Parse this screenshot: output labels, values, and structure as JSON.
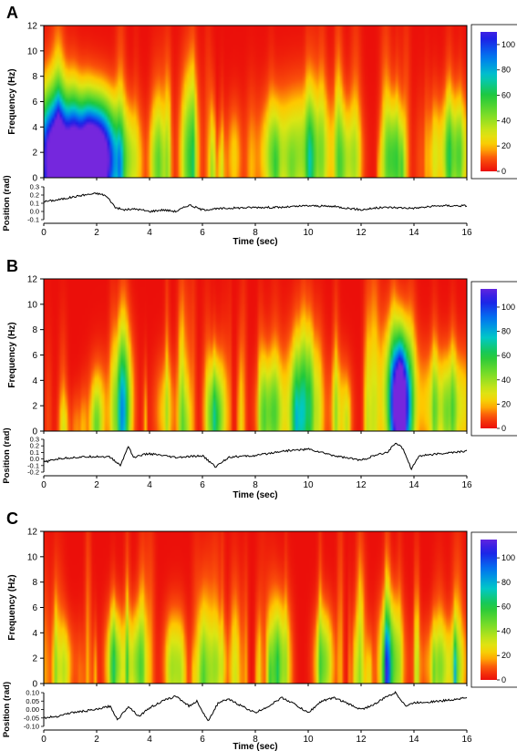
{
  "chart_data": [
    {
      "panel": "A",
      "type": "heatmap",
      "heatmap": {
        "xlabel": "",
        "ylabel": "Frequency (Hz)",
        "xlim": [
          0,
          16
        ],
        "ylim": [
          0,
          12
        ],
        "yticks": [
          0,
          2,
          4,
          6,
          8,
          10,
          12
        ],
        "colorbar": {
          "range": [
            0,
            110
          ],
          "ticks": [
            0,
            20,
            40,
            60,
            80,
            100
          ]
        },
        "blobs": [
          {
            "t": 1.1,
            "f": 1.0,
            "amp": 105,
            "wt": 0.9,
            "wf": 3.4
          },
          {
            "t": 2.1,
            "f": 1.5,
            "amp": 100,
            "wt": 0.55,
            "wf": 3.0
          },
          {
            "t": 0.3,
            "f": 2.0,
            "amp": 55,
            "wt": 0.6,
            "wf": 3.5
          },
          {
            "t": 5.5,
            "f": 1.5,
            "amp": 45,
            "wt": 0.25,
            "wf": 4.5
          },
          {
            "t": 3.3,
            "f": 1.5,
            "amp": 22,
            "wt": 0.25,
            "wf": 3.0
          },
          {
            "t": 4.3,
            "f": 1.5,
            "amp": 22,
            "wt": 0.25,
            "wf": 3.0
          },
          {
            "t": 7.2,
            "f": 1.5,
            "amp": 22,
            "wt": 0.2,
            "wf": 3.0
          },
          {
            "t": 9.8,
            "f": 2.0,
            "amp": 40,
            "wt": 0.9,
            "wf": 3.5
          },
          {
            "t": 13.2,
            "f": 1.5,
            "amp": 45,
            "wt": 0.25,
            "wf": 3.0
          },
          {
            "t": 15.5,
            "f": 2.0,
            "amp": 38,
            "wt": 0.55,
            "wf": 3.0
          },
          {
            "t": 11.6,
            "f": 1.5,
            "amp": 25,
            "wt": 0.3,
            "wf": 3.0
          },
          {
            "t": 8.6,
            "f": 1.5,
            "amp": 22,
            "wt": 0.3,
            "wf": 3.0
          }
        ]
      },
      "trace": {
        "ylabel": "Position (rad)",
        "xlabel": "Time (sec)",
        "xlim": [
          0,
          16
        ],
        "xticks": [
          0,
          2,
          4,
          6,
          8,
          10,
          12,
          14,
          16
        ],
        "ylim": [
          -0.1,
          0.3
        ],
        "yticks": [
          "0.3",
          "0.2",
          "0.1",
          "0.0",
          "-0.1"
        ],
        "t": [
          0,
          0.5,
          1.0,
          1.5,
          2.0,
          2.3,
          2.5,
          2.7,
          3.0,
          3.5,
          4.0,
          4.5,
          5.0,
          5.5,
          6.0,
          7.0,
          8.0,
          9.0,
          10.0,
          11.0,
          12.0,
          12.5,
          13.0,
          14.0,
          15.0,
          16.0
        ],
        "v": [
          0.12,
          0.14,
          0.17,
          0.2,
          0.22,
          0.2,
          0.14,
          0.05,
          0.02,
          0.03,
          0.0,
          0.02,
          0.0,
          0.08,
          0.02,
          0.04,
          0.05,
          0.05,
          0.07,
          0.06,
          0.02,
          0.04,
          0.05,
          0.04,
          0.07,
          0.07
        ]
      }
    },
    {
      "panel": "B",
      "type": "heatmap",
      "heatmap": {
        "xlabel": "",
        "ylabel": "Frequency (Hz)",
        "xlim": [
          0,
          16
        ],
        "ylim": [
          0,
          12
        ],
        "yticks": [
          0,
          2,
          4,
          6,
          8,
          10,
          12
        ],
        "colorbar": {
          "range": [
            0,
            115
          ],
          "ticks": [
            0,
            20,
            40,
            60,
            80,
            100
          ]
        },
        "blobs": [
          {
            "t": 3.0,
            "f": 2.0,
            "amp": 55,
            "wt": 0.25,
            "wf": 4.0
          },
          {
            "t": 6.5,
            "f": 1.5,
            "amp": 45,
            "wt": 0.25,
            "wf": 3.0
          },
          {
            "t": 8.6,
            "f": 1.5,
            "amp": 40,
            "wt": 0.35,
            "wf": 3.0
          },
          {
            "t": 9.8,
            "f": 2.0,
            "amp": 55,
            "wt": 0.4,
            "wf": 4.0
          },
          {
            "t": 13.5,
            "f": 1.5,
            "amp": 110,
            "wt": 0.22,
            "wf": 3.5
          },
          {
            "t": 13.4,
            "f": 3.5,
            "amp": 50,
            "wt": 0.4,
            "wf": 3.5
          },
          {
            "t": 15.3,
            "f": 2.0,
            "amp": 35,
            "wt": 0.8,
            "wf": 3.0
          },
          {
            "t": 2.1,
            "f": 1.5,
            "amp": 20,
            "wt": 0.3,
            "wf": 3.0
          },
          {
            "t": 4.6,
            "f": 1.5,
            "amp": 22,
            "wt": 0.3,
            "wf": 3.0
          },
          {
            "t": 11.2,
            "f": 1.5,
            "amp": 22,
            "wt": 0.3,
            "wf": 3.0
          }
        ]
      },
      "trace": {
        "ylabel": "Position (rad)",
        "xlabel": "Time (sec)",
        "xlim": [
          0,
          16
        ],
        "xticks": [
          0,
          2,
          4,
          6,
          8,
          10,
          12,
          14,
          16
        ],
        "ylim": [
          -0.2,
          0.3
        ],
        "yticks": [
          "0.3",
          "0.2",
          "0.1",
          "0.0",
          "-0.1",
          "-0.2"
        ],
        "t": [
          0,
          0.5,
          1.0,
          1.5,
          2.0,
          2.5,
          2.9,
          3.2,
          3.4,
          3.7,
          4.0,
          5.0,
          6.0,
          6.5,
          7.0,
          8.0,
          9.0,
          10.0,
          11.0,
          12.0,
          12.5,
          13.0,
          13.3,
          13.6,
          13.9,
          14.2,
          15.0,
          16.0
        ],
        "v": [
          -0.05,
          0.0,
          0.02,
          0.03,
          0.04,
          0.03,
          -0.1,
          0.2,
          0.02,
          0.06,
          0.08,
          0.02,
          0.05,
          -0.12,
          0.03,
          0.05,
          0.12,
          0.15,
          0.05,
          -0.02,
          0.05,
          0.1,
          0.25,
          0.15,
          -0.15,
          0.05,
          0.08,
          0.12
        ]
      }
    },
    {
      "panel": "C",
      "type": "heatmap",
      "heatmap": {
        "xlabel": "",
        "ylabel": "Frequency (Hz)",
        "xlim": [
          0,
          16
        ],
        "ylim": [
          0,
          12
        ],
        "yticks": [
          0,
          2,
          4,
          6,
          8,
          10,
          12
        ],
        "colorbar": {
          "range": [
            0,
            115
          ],
          "ticks": [
            0,
            20,
            40,
            60,
            80,
            100
          ]
        },
        "blobs": [
          {
            "t": 2.7,
            "f": 1.5,
            "amp": 45,
            "wt": 0.25,
            "wf": 3.0
          },
          {
            "t": 3.5,
            "f": 1.5,
            "amp": 38,
            "wt": 0.25,
            "wf": 3.0
          },
          {
            "t": 4.9,
            "f": 1.5,
            "amp": 32,
            "wt": 0.25,
            "wf": 3.0
          },
          {
            "t": 8.9,
            "f": 1.5,
            "amp": 45,
            "wt": 0.25,
            "wf": 3.5
          },
          {
            "t": 10.6,
            "f": 1.5,
            "amp": 45,
            "wt": 0.25,
            "wf": 3.0
          },
          {
            "t": 13.1,
            "f": 1.5,
            "amp": 55,
            "wt": 0.3,
            "wf": 3.5
          },
          {
            "t": 15.2,
            "f": 1.5,
            "amp": 25,
            "wt": 0.7,
            "wf": 2.5
          },
          {
            "t": 0.8,
            "f": 1.5,
            "amp": 18,
            "wt": 0.3,
            "wf": 2.5
          },
          {
            "t": 6.6,
            "f": 1.5,
            "amp": 20,
            "wt": 0.3,
            "wf": 2.5
          }
        ]
      },
      "trace": {
        "ylabel": "Position (rad)",
        "xlabel": "Time (sec)",
        "xlim": [
          0,
          16
        ],
        "xticks": [
          0,
          2,
          4,
          6,
          8,
          10,
          12,
          14,
          16
        ],
        "ylim": [
          -0.1,
          0.1
        ],
        "yticks": [
          "0.10",
          "0.05",
          "0.00",
          "-0.05",
          "-0.10"
        ],
        "t": [
          0,
          0.5,
          1.0,
          1.5,
          2.0,
          2.5,
          2.8,
          3.2,
          3.6,
          4.0,
          4.5,
          5.0,
          5.5,
          5.8,
          6.2,
          6.6,
          7.0,
          8.0,
          8.5,
          9.0,
          9.4,
          10.0,
          10.5,
          11.0,
          12.0,
          12.5,
          13.0,
          13.3,
          13.7,
          14.0,
          15.0,
          16.0
        ],
        "v": [
          -0.05,
          -0.04,
          -0.02,
          -0.01,
          0.0,
          0.02,
          -0.06,
          0.02,
          -0.04,
          0.01,
          0.05,
          0.08,
          0.02,
          0.05,
          -0.07,
          0.04,
          0.06,
          -0.02,
          0.02,
          0.07,
          0.04,
          -0.02,
          0.05,
          0.07,
          0.0,
          0.03,
          0.08,
          0.1,
          0.02,
          0.04,
          0.05,
          0.07
        ]
      }
    }
  ]
}
